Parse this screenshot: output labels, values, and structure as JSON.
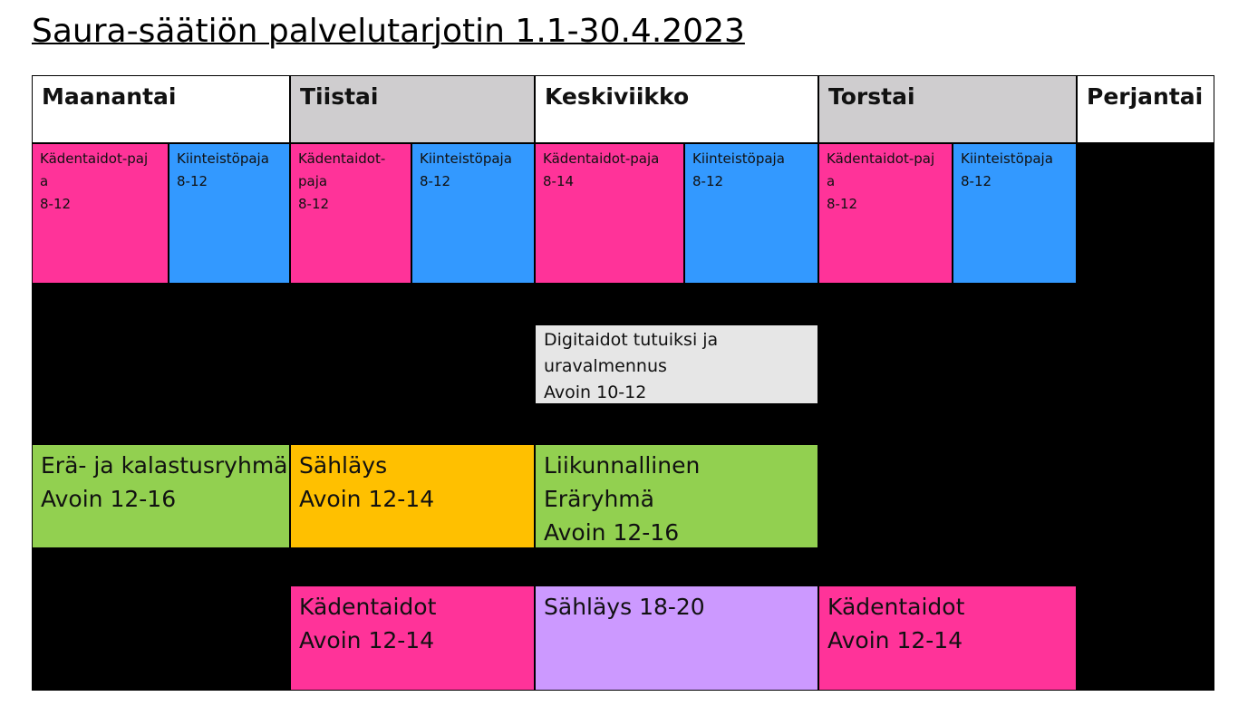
{
  "header": {
    "title": "Saura-säätiön palvelutarjotin 1.1-30.4.2023"
  },
  "table": {
    "days": [
      "Maanantai",
      "Tiistai",
      "Keskiviikko",
      "Torstai",
      "Perjantai"
    ],
    "cells": [
      {
        "lines": [
          "Kädentaidot-paj",
          "a",
          "8-12"
        ]
      },
      {
        "lines": [
          "Kiinteistöpaja",
          "8-12"
        ]
      },
      {
        "lines": [
          "Kädentaidot-",
          "paja",
          "8-12"
        ]
      },
      {
        "lines": [
          "Kiinteistöpaja",
          "8-12"
        ]
      },
      {
        "lines": [
          "Kädentaidot-paja",
          "8-14"
        ]
      },
      {
        "lines": [
          "Kiinteistöpaja",
          "8-12"
        ]
      },
      {
        "lines": [
          "Kädentaidot-paj",
          "a",
          "8-12"
        ]
      },
      {
        "lines": [
          "Kiinteistöpaja",
          "8-12"
        ]
      },
      {
        "lines": [
          "Digitaidot tutuiksi ja",
          "uravalmennus",
          "Avoin 10-12"
        ]
      },
      {
        "lines": [
          "Erä- ja kalastusryhmä",
          "Avoin 12-16"
        ]
      },
      {
        "lines": [
          "Sähläys",
          "Avoin 12-14"
        ]
      },
      {
        "lines": [
          "Liikunnallinen",
          "Eräryhmä",
          "Avoin 12-16"
        ]
      },
      {
        "lines": [
          "Kädentaidot",
          "Avoin 12-14"
        ]
      },
      {
        "lines": [
          "Sähläys 18-20"
        ]
      },
      {
        "lines": [
          "Kädentaidot",
          "Avoin 12-14"
        ]
      }
    ]
  }
}
